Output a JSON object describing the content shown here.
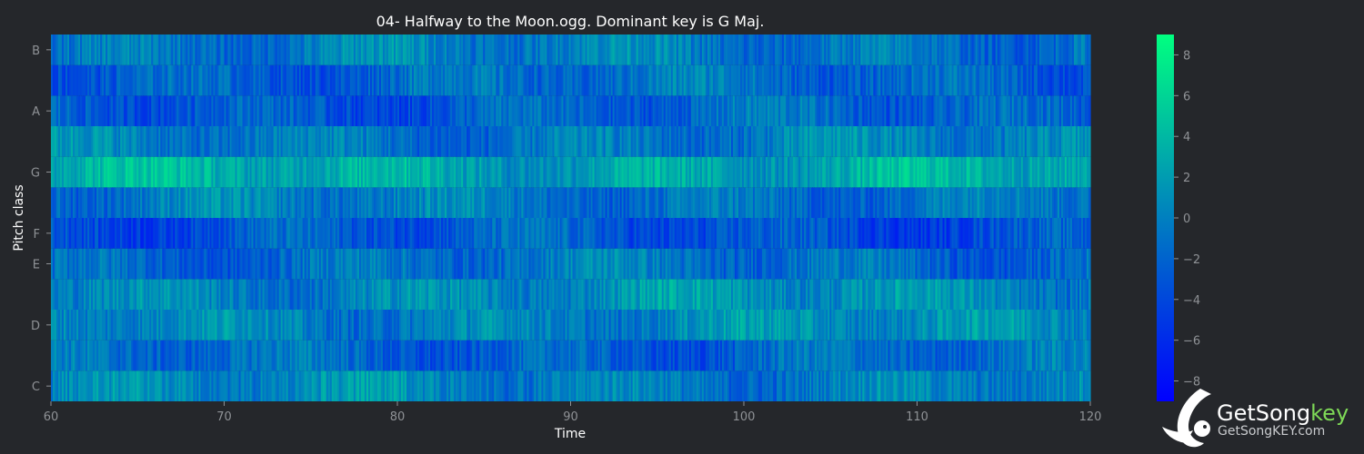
{
  "chart_data": {
    "type": "heatmap",
    "title": "04- Halfway to the Moon.ogg. Dominant key is G Maj.",
    "xlabel": "Time",
    "ylabel": "Pitch class",
    "xlim": [
      60,
      120
    ],
    "x_ticks": [
      60,
      70,
      80,
      90,
      100,
      110,
      120
    ],
    "y_ticks": [
      "C",
      "D",
      "E",
      "F",
      "G",
      "A",
      "B"
    ],
    "pitch_rows": [
      "C",
      "C#",
      "D",
      "D#",
      "E",
      "F",
      "F#",
      "G",
      "G#",
      "A",
      "A#",
      "B"
    ],
    "colorbar": {
      "ticks": [
        -8,
        -6,
        -4,
        -2,
        0,
        2,
        4,
        6,
        8
      ],
      "range": [
        -9,
        9
      ],
      "colormap": [
        "#0000ff",
        "#00ff80"
      ]
    },
    "row_mean_levels": {
      "C": 0.2,
      "C#": -1.8,
      "D": 0.6,
      "D#": 0.8,
      "E": -1.2,
      "F": -3.0,
      "F#": -0.6,
      "G": 3.0,
      "G#": -0.4,
      "A": -2.2,
      "A#": -1.6,
      "B": -0.4
    },
    "dominant_key": "G Maj"
  },
  "tick_labels": {
    "x": [
      "60",
      "70",
      "80",
      "90",
      "100",
      "110",
      "120"
    ],
    "y": [
      "C",
      "D",
      "E",
      "F",
      "G",
      "A",
      "B"
    ],
    "colorbar": [
      "−8",
      "−6",
      "−4",
      "−2",
      "0",
      "2",
      "4",
      "6",
      "8"
    ]
  },
  "brand": {
    "name_main": "GetSong",
    "name_accent": "key",
    "url": "GetSongKEY.com"
  },
  "colors": {
    "background": "#25272b",
    "text": "#ffffff",
    "tick": "#8f9296",
    "brand_accent": "#7ed957"
  }
}
